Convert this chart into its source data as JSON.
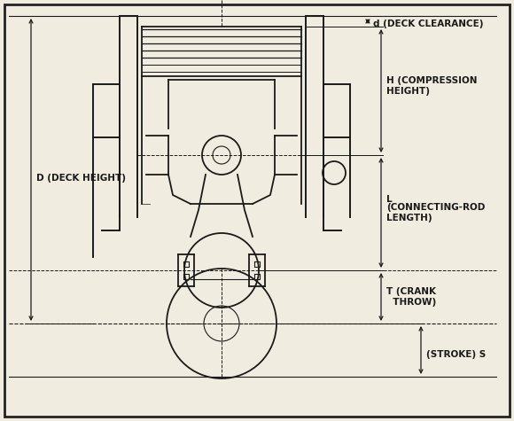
{
  "bg_color": "#f0ece0",
  "line_color": "#1a1a1a",
  "annotations": {
    "d_deck_clearance": "d (DECK CLEARANCE)",
    "h_compression": "H (COMPRESSION\nHEIGHT)",
    "l_connecting": "(CONNECTING-ROD\nLENGTH)",
    "l_label": "L",
    "t_crank": "T (CRANK\n  THROW)",
    "s_stroke": "(STROKE) S",
    "d_deck_height": "D (DECK HEIGHT)"
  },
  "border_color": "#222222"
}
